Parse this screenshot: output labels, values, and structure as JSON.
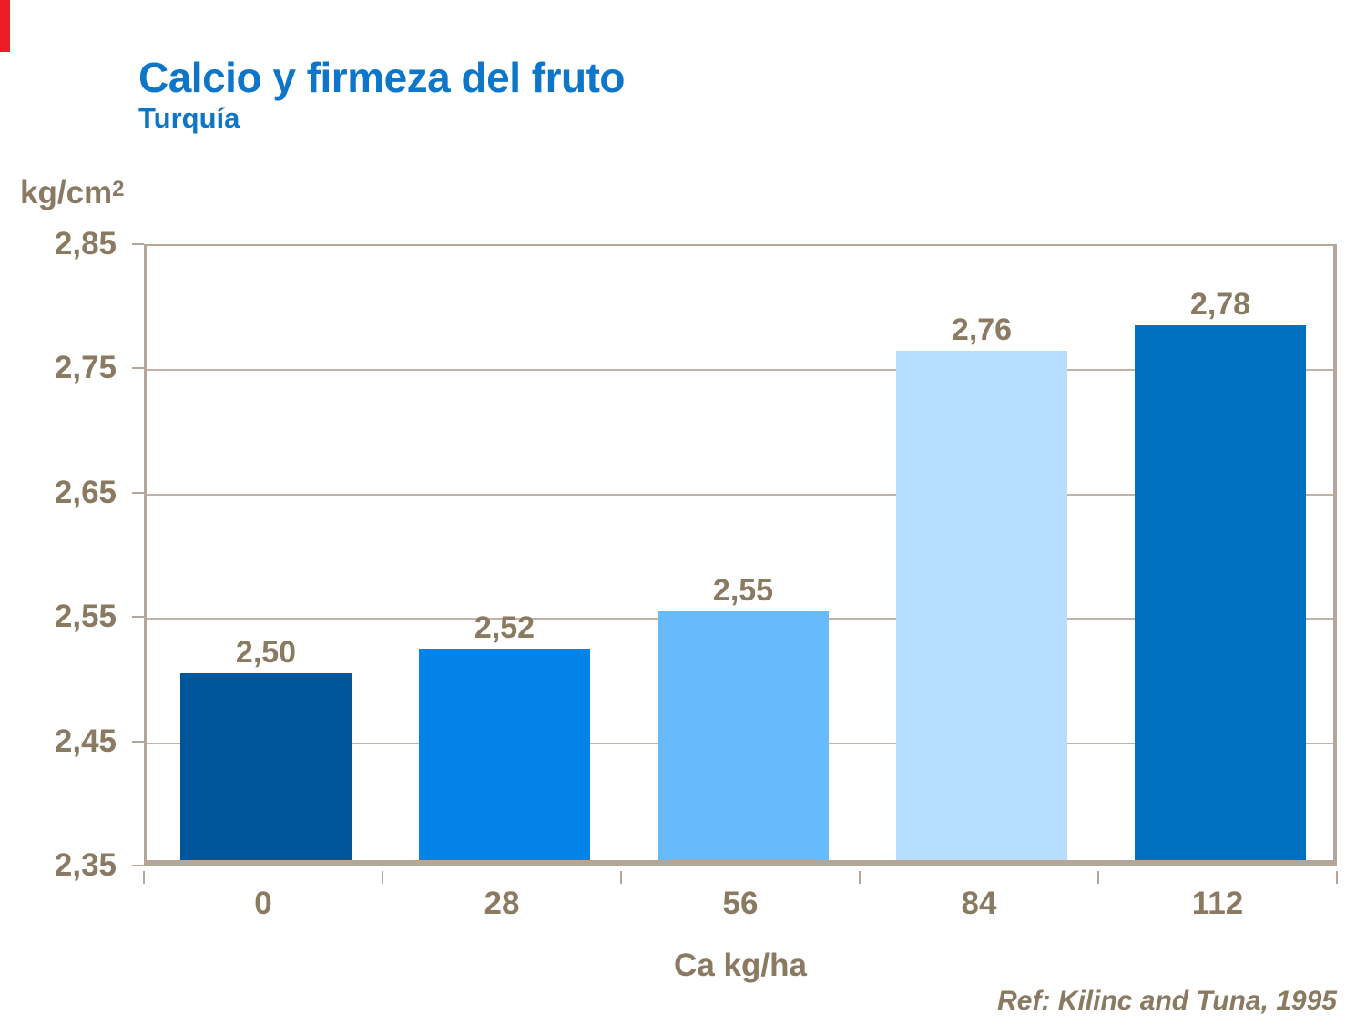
{
  "accent": {
    "color": "#ee1c25"
  },
  "header": {
    "title": "Calcio y firmeza del fruto",
    "subtitle": "Turquía",
    "title_color": "#0d76c8"
  },
  "footer": {
    "reference": "Ref: Kilinc and Tuna, 1995"
  },
  "style": {
    "label_color": "#8a7a62",
    "frame_color": "#b4a698",
    "gridline_color": "#c1b4a7"
  },
  "chart_data": {
    "type": "bar",
    "title": "Calcio y firmeza del fruto",
    "subtitle": "Turquía",
    "categories": [
      "0",
      "28",
      "56",
      "84",
      "112"
    ],
    "values": [
      2.5,
      2.52,
      2.55,
      2.76,
      2.78
    ],
    "value_labels": [
      "2,50",
      "2,52",
      "2,55",
      "2,76",
      "2,78"
    ],
    "bar_colors": [
      "#00569b",
      "#0383e8",
      "#67bbfc",
      "#b6ddfd",
      "#0070c0"
    ],
    "xlabel": "Ca kg/ha",
    "ylabel_base": "kg/cm",
    "ylabel_sup": "2",
    "ylim": [
      2.35,
      2.85
    ],
    "yticks": [
      2.85,
      2.75,
      2.65,
      2.55,
      2.45,
      2.35
    ],
    "ytick_labels": [
      "2,85",
      "2,75",
      "2,65",
      "2,55",
      "2,45",
      "2,35"
    ],
    "grid": true,
    "legend": false
  }
}
